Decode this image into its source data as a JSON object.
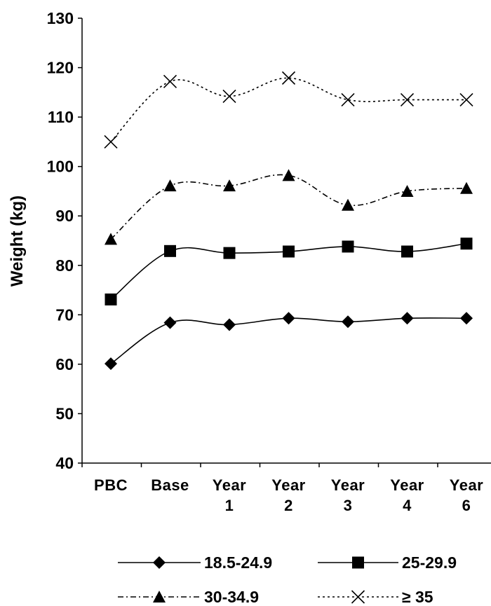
{
  "chart_data": {
    "type": "line",
    "title": "",
    "xlabel": "",
    "ylabel": "Weight (kg)",
    "ylim": [
      40,
      130
    ],
    "yticks": [
      40,
      50,
      60,
      70,
      80,
      90,
      100,
      110,
      120,
      130
    ],
    "grid": false,
    "legend_position": "bottom",
    "categories": [
      [
        "PBC"
      ],
      [
        "Base"
      ],
      [
        "Year",
        "1"
      ],
      [
        "Year",
        "2"
      ],
      [
        "Year",
        "3"
      ],
      [
        "Year",
        "4"
      ],
      [
        "Year",
        "6"
      ]
    ],
    "series": [
      {
        "name": "18.5-24.9",
        "marker": "diamond",
        "line": "solid",
        "color": "#000000",
        "values": [
          60.1,
          68.4,
          68.0,
          69.3,
          68.6,
          69.3,
          69.3
        ]
      },
      {
        "name": "25-29.9",
        "marker": "square",
        "line": "solid",
        "color": "#000000",
        "values": [
          73.1,
          82.9,
          82.5,
          82.8,
          83.8,
          82.8,
          84.4
        ]
      },
      {
        "name": "30-34.9",
        "marker": "triangle",
        "line": "dashdot",
        "color": "#000000",
        "values": [
          85.3,
          96.1,
          96.1,
          98.2,
          92.2,
          95.0,
          95.6
        ]
      },
      {
        "name": "≥ 35",
        "marker": "x",
        "line": "dotted",
        "color": "#000000",
        "values": [
          105.0,
          117.2,
          114.2,
          117.9,
          113.5,
          113.5,
          113.5
        ]
      }
    ]
  }
}
